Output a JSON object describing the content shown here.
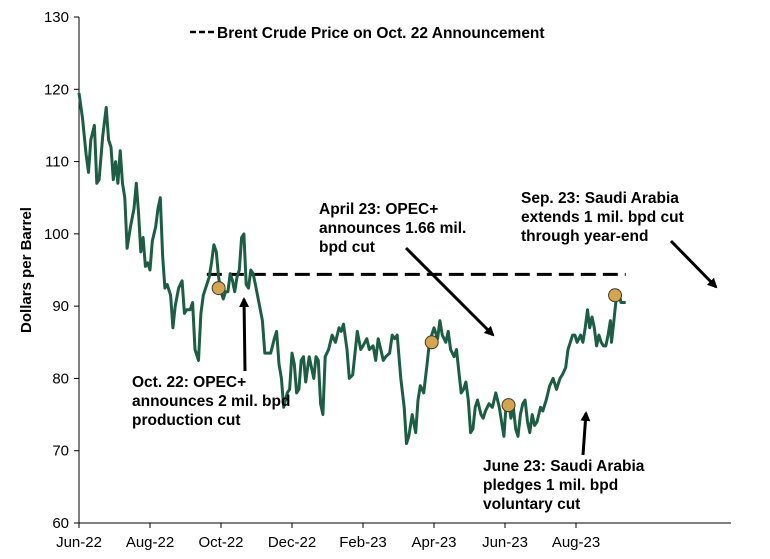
{
  "chart_data": {
    "type": "line",
    "ylabel": "Dollars per Barrel",
    "xlabel": "",
    "ylim": [
      60,
      130
    ],
    "yticks": [
      60,
      70,
      80,
      90,
      100,
      110,
      120,
      130
    ],
    "xlim": [
      "2022-06-01",
      "2023-08-31"
    ],
    "xticks": [
      {
        "date": "2022-06-01",
        "label": "Jun-22"
      },
      {
        "date": "2022-08-01",
        "label": "Aug-22"
      },
      {
        "date": "2022-10-01",
        "label": "Oct-22"
      },
      {
        "date": "2022-12-01",
        "label": "Dec-22"
      },
      {
        "date": "2023-02-01",
        "label": "Feb-23"
      },
      {
        "date": "2023-04-01",
        "label": "Apr-23"
      },
      {
        "date": "2023-06-01",
        "label": "Jun-23"
      },
      {
        "date": "2023-08-01",
        "label": "Aug-23"
      }
    ],
    "line_color": "#1b5e45",
    "marker_color": "#d4a44e",
    "grid": false,
    "series": [
      {
        "name": "",
        "points": [
          [
            "2022-06-01",
            119.5
          ],
          [
            "2022-06-04",
            116
          ],
          [
            "2022-06-07",
            111
          ],
          [
            "2022-06-09",
            108.5
          ],
          [
            "2022-06-11",
            113
          ],
          [
            "2022-06-14",
            115
          ],
          [
            "2022-06-16",
            107
          ],
          [
            "2022-06-18",
            107.5
          ],
          [
            "2022-06-21",
            113.5
          ],
          [
            "2022-06-24",
            117.5
          ],
          [
            "2022-06-26",
            113
          ],
          [
            "2022-06-28",
            112
          ],
          [
            "2022-06-30",
            107.5
          ],
          [
            "2022-07-02",
            110
          ],
          [
            "2022-07-04",
            107
          ],
          [
            "2022-07-06",
            111.5
          ],
          [
            "2022-07-08",
            107
          ],
          [
            "2022-07-10",
            105
          ],
          [
            "2022-07-12",
            98
          ],
          [
            "2022-07-15",
            101
          ],
          [
            "2022-07-18",
            103.5
          ],
          [
            "2022-07-20",
            107
          ],
          [
            "2022-07-22",
            103
          ],
          [
            "2022-07-24",
            97.5
          ],
          [
            "2022-07-26",
            99.5
          ],
          [
            "2022-07-28",
            95.5
          ],
          [
            "2022-07-30",
            96
          ],
          [
            "2022-08-01",
            95
          ],
          [
            "2022-08-03",
            99
          ],
          [
            "2022-08-06",
            101
          ],
          [
            "2022-08-08",
            103.5
          ],
          [
            "2022-08-10",
            105
          ],
          [
            "2022-08-12",
            97
          ],
          [
            "2022-08-14",
            92.5
          ],
          [
            "2022-08-16",
            93
          ],
          [
            "2022-08-19",
            91.5
          ],
          [
            "2022-08-21",
            87
          ],
          [
            "2022-08-23",
            90
          ],
          [
            "2022-08-26",
            92.5
          ],
          [
            "2022-08-29",
            93.5
          ],
          [
            "2022-08-31",
            89
          ],
          [
            "2022-09-02",
            89.5
          ],
          [
            "2022-09-05",
            89.5
          ],
          [
            "2022-09-07",
            90.5
          ],
          [
            "2022-09-09",
            84
          ],
          [
            "2022-09-12",
            82.5
          ],
          [
            "2022-09-14",
            89
          ],
          [
            "2022-09-16",
            91.5
          ],
          [
            "2022-09-19",
            93
          ],
          [
            "2022-09-21",
            94
          ],
          [
            "2022-09-23",
            96
          ],
          [
            "2022-09-25",
            98.5
          ],
          [
            "2022-09-27",
            97.5
          ],
          [
            "2022-09-29",
            94
          ],
          [
            "2022-10-01",
            92
          ],
          [
            "2022-10-03",
            91
          ],
          [
            "2022-10-05",
            92
          ],
          [
            "2022-10-07",
            92
          ],
          [
            "2022-10-09",
            94.5
          ],
          [
            "2022-10-11",
            93.5
          ],
          [
            "2022-10-13",
            92
          ],
          [
            "2022-10-15",
            94
          ],
          [
            "2022-10-17",
            95
          ],
          [
            "2022-10-19",
            99.5
          ],
          [
            "2022-10-21",
            100
          ],
          [
            "2022-10-23",
            93
          ],
          [
            "2022-10-25",
            92.5
          ],
          [
            "2022-10-27",
            95
          ],
          [
            "2022-10-29",
            94.5
          ],
          [
            "2022-10-31",
            93
          ],
          [
            "2022-11-03",
            90.5
          ],
          [
            "2022-11-06",
            88
          ],
          [
            "2022-11-08",
            83.5
          ],
          [
            "2022-11-10",
            83.5
          ],
          [
            "2022-11-13",
            83.5
          ],
          [
            "2022-11-16",
            85.5
          ],
          [
            "2022-11-18",
            86.5
          ],
          [
            "2022-11-20",
            82
          ],
          [
            "2022-11-22",
            80
          ],
          [
            "2022-11-24",
            76
          ],
          [
            "2022-11-27",
            78
          ],
          [
            "2022-11-29",
            78.5
          ],
          [
            "2022-12-01",
            83.5
          ],
          [
            "2022-12-03",
            82
          ],
          [
            "2022-12-05",
            78
          ],
          [
            "2022-12-07",
            78.5
          ],
          [
            "2022-12-09",
            82.5
          ],
          [
            "2022-12-11",
            83
          ],
          [
            "2022-12-13",
            79.5
          ],
          [
            "2022-12-16",
            83
          ],
          [
            "2022-12-18",
            81.5
          ],
          [
            "2022-12-20",
            80
          ],
          [
            "2022-12-22",
            83
          ],
          [
            "2022-12-24",
            82.5
          ],
          [
            "2022-12-26",
            76.5
          ],
          [
            "2022-12-28",
            75
          ],
          [
            "2022-12-30",
            83
          ],
          [
            "2023-01-02",
            84
          ],
          [
            "2023-01-05",
            86
          ],
          [
            "2023-01-08",
            85
          ],
          [
            "2023-01-11",
            87
          ],
          [
            "2023-01-13",
            86.5
          ],
          [
            "2023-01-15",
            87.5
          ],
          [
            "2023-01-18",
            84
          ],
          [
            "2023-01-20",
            80
          ],
          [
            "2023-01-23",
            80.5
          ],
          [
            "2023-01-25",
            83.5
          ],
          [
            "2023-01-27",
            86.5
          ],
          [
            "2023-01-30",
            84
          ],
          [
            "2023-02-01",
            84.5
          ],
          [
            "2023-02-04",
            85.5
          ],
          [
            "2023-02-06",
            84
          ],
          [
            "2023-02-09",
            84.5
          ],
          [
            "2023-02-11",
            82.5
          ],
          [
            "2023-02-13",
            85.5
          ],
          [
            "2023-02-15",
            84
          ],
          [
            "2023-02-17",
            82.5
          ],
          [
            "2023-02-19",
            83
          ],
          [
            "2023-02-22",
            83.5
          ],
          [
            "2023-02-24",
            86
          ],
          [
            "2023-02-26",
            85.5
          ],
          [
            "2023-02-28",
            86
          ],
          [
            "2023-03-03",
            80
          ],
          [
            "2023-03-06",
            76
          ],
          [
            "2023-03-08",
            71
          ],
          [
            "2023-03-10",
            72
          ],
          [
            "2023-03-13",
            75
          ],
          [
            "2023-03-16",
            72.5
          ],
          [
            "2023-03-18",
            77
          ],
          [
            "2023-03-20",
            79
          ],
          [
            "2023-03-23",
            78
          ],
          [
            "2023-03-26",
            82
          ],
          [
            "2023-03-28",
            85
          ],
          [
            "2023-03-30",
            86
          ],
          [
            "2023-04-01",
            87
          ],
          [
            "2023-04-04",
            85.5
          ],
          [
            "2023-04-06",
            88
          ],
          [
            "2023-04-08",
            86
          ],
          [
            "2023-04-11",
            85
          ],
          [
            "2023-04-13",
            86.5
          ],
          [
            "2023-04-15",
            84
          ],
          [
            "2023-04-18",
            83
          ],
          [
            "2023-04-20",
            84
          ],
          [
            "2023-04-22",
            81
          ],
          [
            "2023-04-24",
            78
          ],
          [
            "2023-04-26",
            78.5
          ],
          [
            "2023-04-28",
            79.5
          ],
          [
            "2023-04-30",
            77
          ],
          [
            "2023-05-02",
            72.5
          ],
          [
            "2023-05-04",
            73
          ],
          [
            "2023-05-06",
            76
          ],
          [
            "2023-05-08",
            77
          ],
          [
            "2023-05-11",
            75
          ],
          [
            "2023-05-13",
            74.5
          ],
          [
            "2023-05-15",
            75.5
          ],
          [
            "2023-05-18",
            76.5
          ],
          [
            "2023-05-21",
            76
          ],
          [
            "2023-05-24",
            78
          ],
          [
            "2023-05-27",
            76
          ],
          [
            "2023-05-29",
            74
          ],
          [
            "2023-05-31",
            72
          ],
          [
            "2023-06-02",
            76.5
          ],
          [
            "2023-06-04",
            77
          ],
          [
            "2023-06-06",
            74.5
          ],
          [
            "2023-06-08",
            76
          ],
          [
            "2023-06-10",
            73
          ],
          [
            "2023-06-12",
            72
          ],
          [
            "2023-06-14",
            75
          ],
          [
            "2023-06-16",
            76.5
          ],
          [
            "2023-06-18",
            77
          ],
          [
            "2023-06-20",
            74
          ],
          [
            "2023-06-22",
            72.5
          ],
          [
            "2023-06-24",
            75
          ],
          [
            "2023-06-26",
            73.5
          ],
          [
            "2023-06-28",
            74
          ],
          [
            "2023-07-01",
            76
          ],
          [
            "2023-07-03",
            75.5
          ],
          [
            "2023-07-06",
            77
          ],
          [
            "2023-07-09",
            79
          ],
          [
            "2023-07-12",
            80
          ],
          [
            "2023-07-15",
            78.5
          ],
          [
            "2023-07-18",
            80
          ],
          [
            "2023-07-20",
            80.5
          ],
          [
            "2023-07-23",
            81.5
          ],
          [
            "2023-07-25",
            84
          ],
          [
            "2023-07-27",
            85
          ],
          [
            "2023-07-29",
            86
          ],
          [
            "2023-07-31",
            86
          ],
          [
            "2023-08-02",
            85
          ],
          [
            "2023-08-05",
            86
          ],
          [
            "2023-08-07",
            85
          ],
          [
            "2023-08-09",
            87
          ],
          [
            "2023-08-11",
            89.5
          ],
          [
            "2023-08-13",
            87
          ],
          [
            "2023-08-15",
            88.5
          ],
          [
            "2023-08-17",
            87
          ],
          [
            "2023-08-19",
            84.5
          ],
          [
            "2023-08-21",
            86
          ],
          [
            "2023-08-23",
            85
          ],
          [
            "2023-08-25",
            84.5
          ],
          [
            "2023-08-27",
            84.5
          ],
          [
            "2023-08-29",
            86
          ],
          [
            "2023-08-31",
            88
          ]
        ]
      }
    ],
    "tail_points": [
      [
        "2023-09-01",
        85
      ],
      [
        "2023-09-03",
        88
      ],
      [
        "2023-09-05",
        91
      ],
      [
        "2023-09-07",
        92
      ],
      [
        "2023-09-09",
        90.5
      ],
      [
        "2023-09-11",
        90.5
      ],
      [
        "2023-09-13",
        90.5
      ]
    ],
    "reference_line": {
      "label": "Brent Crude Price on Oct. 22 Announcement",
      "value": 94.4,
      "from": "2022-09-19",
      "to": "2023-09-13",
      "style": "dashed"
    },
    "markers": [
      {
        "date": "2022-09-29",
        "value": 92.5
      },
      {
        "date": "2023-03-30",
        "value": 85
      },
      {
        "date": "2023-06-04",
        "value": 76.3
      },
      {
        "date": "2023-09-04",
        "value": 91.5
      }
    ],
    "annotations": [
      {
        "lines": [
          "Oct. 22: OPEC+",
          "announces 2 mil. bpd",
          "production cut"
        ]
      },
      {
        "lines": [
          "April 23: OPEC+",
          "announces 1.66 mil.",
          "bpd cut"
        ]
      },
      {
        "lines": [
          "June 23: Saudi Arabia",
          "pledges 1 mil. bpd",
          "voluntary cut"
        ]
      },
      {
        "lines": [
          "Sep. 23: Saudi Arabia",
          "extends 1 mil. bpd cut",
          "through year-end"
        ]
      }
    ]
  }
}
